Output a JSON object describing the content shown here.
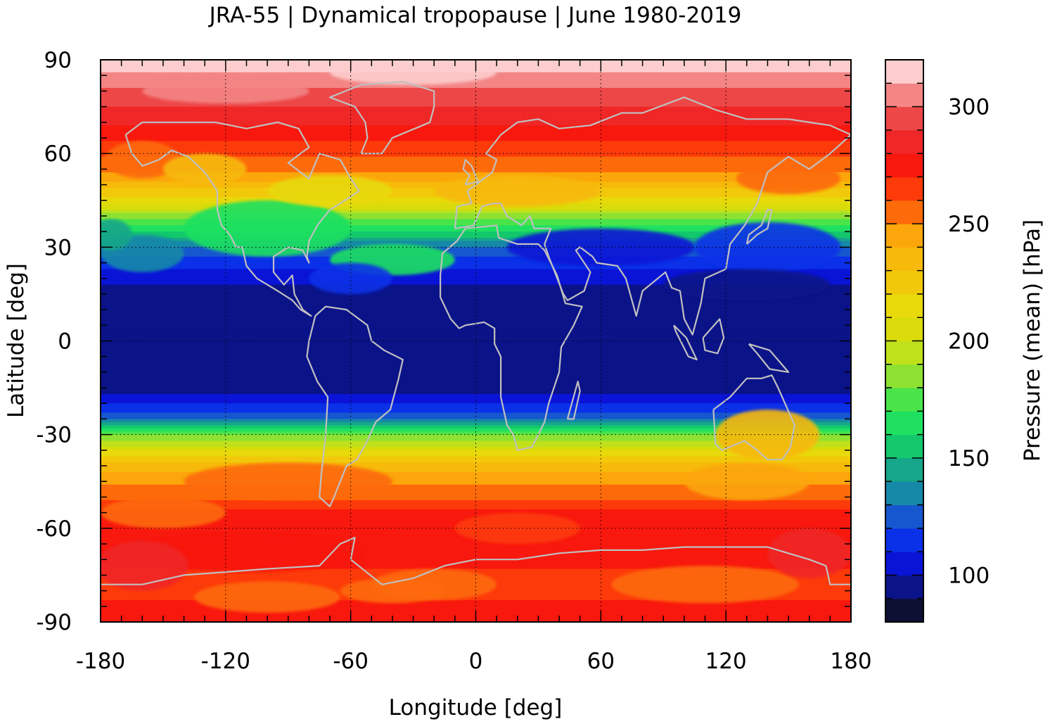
{
  "title": "JRA-55 | Dynamical tropopause | June 1980-2019",
  "chart_data": {
    "type": "heatmap",
    "title": "JRA-55 | Dynamical tropopause | June 1980-2019",
    "xlabel": "Longitude [deg]",
    "ylabel": "Latitude [deg]",
    "colorbar_label": "Pressure (mean) [hPa]",
    "xlim": [
      -180,
      180
    ],
    "ylim": [
      -90,
      90
    ],
    "x_ticks": [
      "-180",
      "-120",
      "-60",
      "0",
      "60",
      "120",
      "180"
    ],
    "y_ticks": [
      "90",
      "60",
      "30",
      "0",
      "-30",
      "-60",
      "-90"
    ],
    "colorbar_ticks": [
      "300",
      "250",
      "200",
      "150",
      "100"
    ],
    "colorbar_range": [
      80,
      320
    ],
    "colorbar_levels": [
      {
        "from": 80,
        "to": 90,
        "color": "#0d0f33"
      },
      {
        "from": 90,
        "to": 100,
        "color": "#0b1389"
      },
      {
        "from": 100,
        "to": 110,
        "color": "#0a14d6"
      },
      {
        "from": 110,
        "to": 120,
        "color": "#0a30e8"
      },
      {
        "from": 120,
        "to": 130,
        "color": "#1657cf"
      },
      {
        "from": 130,
        "to": 140,
        "color": "#1688a8"
      },
      {
        "from": 140,
        "to": 150,
        "color": "#16a68a"
      },
      {
        "from": 150,
        "to": 160,
        "color": "#12c76c"
      },
      {
        "from": 160,
        "to": 170,
        "color": "#1fe061"
      },
      {
        "from": 170,
        "to": 180,
        "color": "#4ae44a"
      },
      {
        "from": 180,
        "to": 190,
        "color": "#8fe131"
      },
      {
        "from": 190,
        "to": 200,
        "color": "#bfe11b"
      },
      {
        "from": 200,
        "to": 210,
        "color": "#d9dc0a"
      },
      {
        "from": 210,
        "to": 220,
        "color": "#e8d90a"
      },
      {
        "from": 220,
        "to": 230,
        "color": "#f2c90a"
      },
      {
        "from": 230,
        "to": 240,
        "color": "#f7b90a"
      },
      {
        "from": 240,
        "to": 250,
        "color": "#fba60a"
      },
      {
        "from": 250,
        "to": 260,
        "color": "#fd6a0a"
      },
      {
        "from": 260,
        "to": 270,
        "color": "#fd3a0a"
      },
      {
        "from": 270,
        "to": 280,
        "color": "#f8180e"
      },
      {
        "from": 280,
        "to": 290,
        "color": "#ef2727"
      },
      {
        "from": 290,
        "to": 300,
        "color": "#ed4747"
      },
      {
        "from": 300,
        "to": 310,
        "color": "#f38585"
      },
      {
        "from": 310,
        "to": 320,
        "color": "#fdcdcd"
      }
    ],
    "zonal_profile": {
      "lat": [
        90,
        85,
        80,
        75,
        70,
        65,
        60,
        55,
        50,
        45,
        40,
        35,
        30,
        25,
        20,
        15,
        10,
        5,
        0,
        -5,
        -10,
        -15,
        -20,
        -25,
        -30,
        -35,
        -40,
        -45,
        -50,
        -55,
        -60,
        -65,
        -70,
        -75,
        -80,
        -85,
        -90
      ],
      "pressure_hpa": [
        315,
        308,
        298,
        290,
        283,
        272,
        262,
        252,
        236,
        215,
        185,
        160,
        130,
        115,
        104,
        95,
        92,
        92,
        92,
        92,
        93,
        96,
        108,
        128,
        180,
        208,
        235,
        248,
        258,
        272,
        276,
        276,
        274,
        268,
        260,
        275,
        276
      ]
    },
    "coastline_color": "#c0c0c0",
    "grid": true,
    "grid_style": "dotted"
  }
}
